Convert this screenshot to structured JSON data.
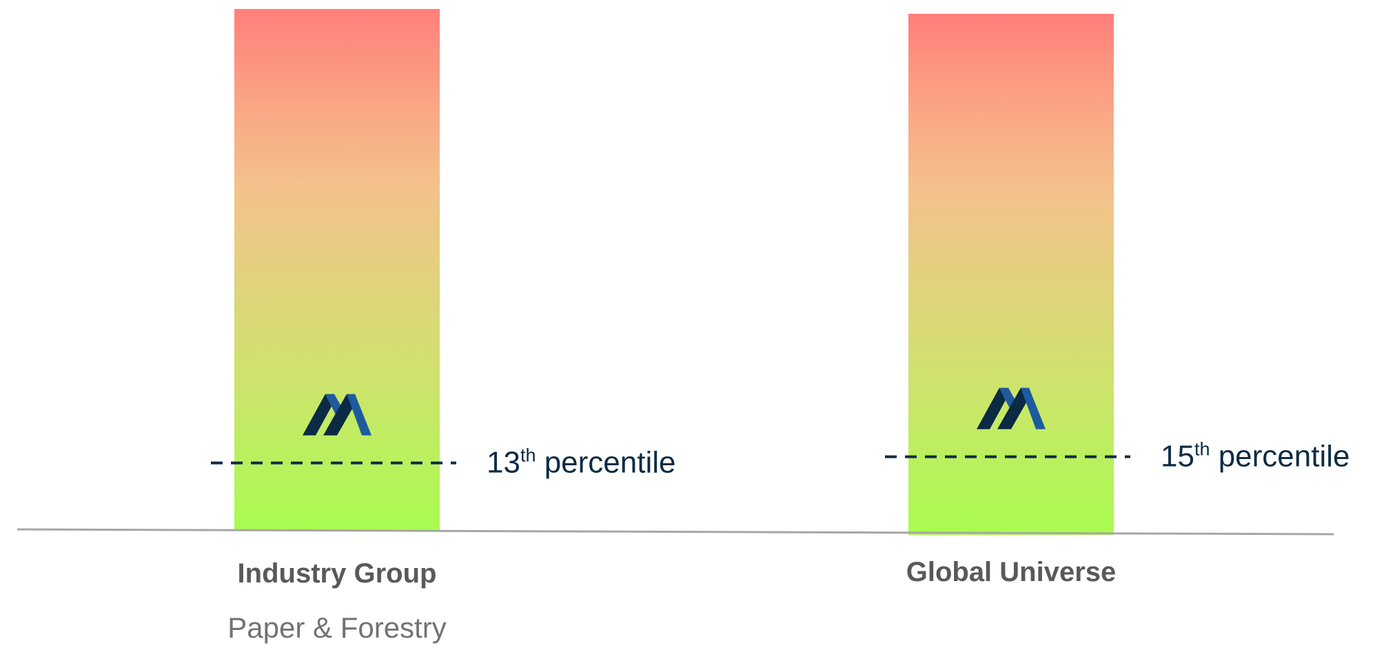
{
  "chart_data": {
    "type": "bar",
    "categories": [
      "Industry Group",
      "Global Universe"
    ],
    "subcategories": [
      "Paper & Forestry",
      ""
    ],
    "values": [
      13,
      15
    ],
    "value_suffix": "th",
    "value_label": "percentile",
    "ylim": [
      0,
      100
    ],
    "gradient": "green (low) to red (high)",
    "marker_icon": "company-logo-m-icon",
    "grid": false,
    "legend": "none"
  },
  "colors": {
    "gradient_top": "#ff7f7a",
    "gradient_upper": "#faa585",
    "gradient_mid_upper": "#f4c18c",
    "gradient_mid": "#e1d27c",
    "gradient_lower": "#cde46c",
    "gradient_bottom": "#a8fc50",
    "baseline": "#a6a6a6",
    "marker_line": "#0d2b45",
    "percentile_text": "#0d2b45",
    "category_text": "#595959",
    "sub_text": "#737373",
    "logo_dark": "#0b2a44",
    "logo_blue": "#1e5a9e"
  }
}
